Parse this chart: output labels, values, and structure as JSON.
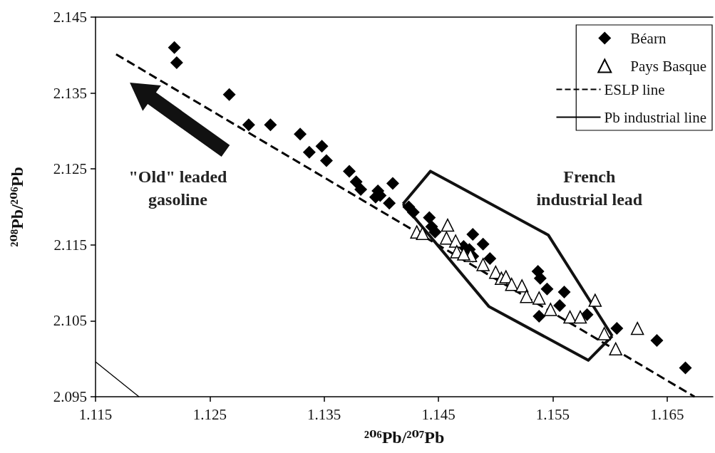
{
  "chart_data": {
    "type": "scatter",
    "xlabel": "²⁰⁶Pb/²⁰⁷Pb",
    "ylabel": "²⁰⁸Pb/²⁰⁶Pb",
    "annotations": [
      "\"Old\" leaded\ngasoline",
      "French\nindustrial lead"
    ],
    "xlim": [
      1.115,
      1.169
    ],
    "xticks": [
      1.115,
      1.125,
      1.135,
      1.145,
      1.155,
      1.165
    ],
    "ylim": [
      2.095,
      2.145
    ],
    "yticks": [
      2.095,
      2.105,
      2.115,
      2.125,
      2.135,
      2.145
    ],
    "grid": false,
    "legend": "top right",
    "series": [
      {
        "name": "Béarn",
        "marker": "diamond",
        "color": "#000000",
        "x": [
          1.1219,
          1.1221,
          1.1267,
          1.1284,
          1.1303,
          1.1329,
          1.1337,
          1.1348,
          1.1352,
          1.1372,
          1.1378,
          1.1382,
          1.1397,
          1.1399,
          1.1395,
          1.1407,
          1.141,
          1.1424,
          1.1428,
          1.1442,
          1.1444,
          1.1447,
          1.148,
          1.1489,
          1.1477,
          1.1495,
          1.148,
          1.1472,
          1.1537,
          1.1539,
          1.1545,
          1.156,
          1.1556,
          1.1538,
          1.158,
          1.1606,
          1.1641,
          1.1666
        ],
        "values": [
          2.141,
          2.139,
          2.1348,
          2.1308,
          2.1308,
          2.1296,
          2.1272,
          2.128,
          2.1261,
          2.1247,
          2.1233,
          2.1223,
          2.1221,
          2.1215,
          2.1213,
          2.1205,
          2.1231,
          2.12,
          2.1193,
          2.1186,
          2.1174,
          2.1167,
          2.1164,
          2.1151,
          2.1144,
          2.1132,
          2.1135,
          2.1148,
          2.1115,
          2.1106,
          2.1092,
          2.1088,
          2.107,
          2.1056,
          2.1058,
          2.104,
          2.1024,
          2.0988
        ]
      },
      {
        "name": "Pays Basque",
        "marker": "triangle",
        "color": "#000000",
        "x": [
          1.1431,
          1.1436,
          1.1458,
          1.1457,
          1.1465,
          1.1466,
          1.1478,
          1.1472,
          1.1489,
          1.15,
          1.1505,
          1.1509,
          1.1514,
          1.1523,
          1.1527,
          1.1538,
          1.1548,
          1.1565,
          1.1574,
          1.1587,
          1.1595,
          1.1605,
          1.1624
        ],
        "values": [
          2.1167,
          2.1165,
          2.1176,
          2.1159,
          2.1155,
          2.1141,
          2.1136,
          2.1138,
          2.1124,
          2.1114,
          2.1106,
          2.1108,
          2.1098,
          2.1096,
          2.1082,
          2.108,
          2.1065,
          2.1055,
          2.1055,
          2.1077,
          2.1033,
          2.1013,
          2.104
        ]
      },
      {
        "name": "ESLP line",
        "type": "line",
        "line_style": "dashed",
        "marker": "none",
        "color": "#000000",
        "x": [
          1.1168,
          1.1674
        ],
        "values": [
          2.1401,
          2.095
        ]
      },
      {
        "name": "Pb industrial line",
        "type": "line",
        "line_style": "solid",
        "marker": "none",
        "color": "#000000",
        "x": [
          1.115,
          1.1188
        ],
        "values": [
          2.0996,
          2.095
        ]
      },
      {
        "type": "line",
        "line_style": "solid",
        "marker": "none",
        "color": "#111111",
        "x": [
          1.1419,
          1.1443,
          1.1546,
          1.1602
        ],
        "values": [
          2.1204,
          2.1247,
          2.1163,
          2.103
        ]
      },
      {
        "type": "line",
        "line_style": "solid",
        "marker": "none",
        "color": "#111111",
        "x": [
          1.1419,
          1.1494,
          1.1581,
          1.1602
        ],
        "values": [
          2.1204,
          2.1069,
          2.0998,
          2.103
        ]
      }
    ]
  }
}
